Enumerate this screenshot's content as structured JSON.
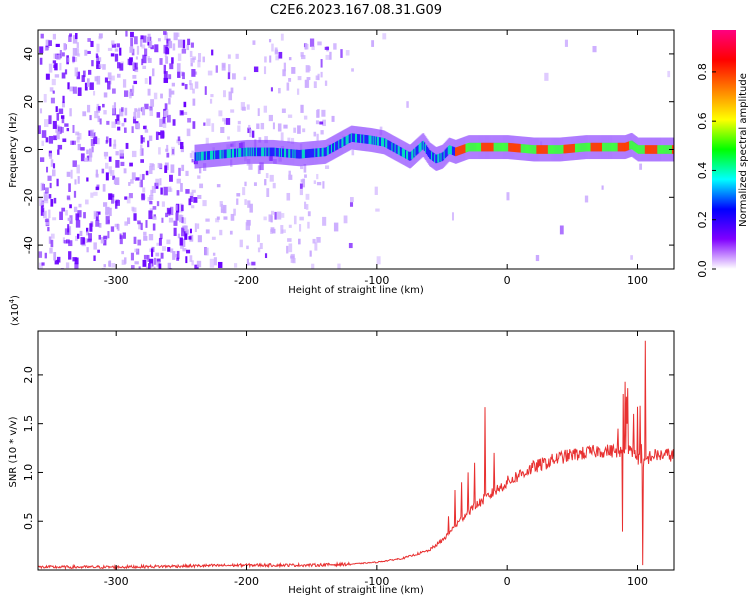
{
  "title": "C2E6.2023.167.08.31.G09",
  "chart_data": [
    {
      "type": "heatmap",
      "xlabel": "Height of straight line (km)",
      "ylabel": "Frequency (Hz)",
      "xlim": [
        -360,
        128
      ],
      "ylim": [
        -50,
        50
      ],
      "x_ticks": [
        -300,
        -200,
        -100,
        0,
        100
      ],
      "y_ticks": [
        -40,
        -20,
        0,
        20,
        40
      ],
      "colorbar": {
        "label": "Normalized spectral amplitude",
        "range": [
          0.0,
          0.97
        ],
        "ticks": [
          0.0,
          0.2,
          0.4,
          0.6,
          0.8
        ],
        "colormap": [
          "#ffffff",
          "#8000ff",
          "#0000ff",
          "#00ffff",
          "#00ff00",
          "#ffff00",
          "#ff8000",
          "#ff0000",
          "#ff0080"
        ]
      },
      "trace": {
        "x": [
          -240,
          -220,
          -200,
          -180,
          -160,
          -140,
          -120,
          -105,
          -95,
          -85,
          -75,
          -65,
          -60,
          -55,
          -50,
          -45,
          -40,
          -30,
          -20,
          -10,
          0,
          20,
          40,
          60,
          80,
          90,
          95,
          100,
          110,
          128
        ],
        "y": [
          -3,
          -2,
          -1,
          -1,
          -2,
          -1,
          5,
          4,
          3,
          0,
          -3,
          2,
          -2,
          -4,
          -3,
          0,
          -1,
          1,
          1,
          1,
          1,
          0,
          0,
          1,
          1,
          1,
          2,
          0,
          0,
          0
        ]
      }
    },
    {
      "type": "line",
      "xlabel": "Height of straight line (km)",
      "ylabel": "SNR (10 * v/v)",
      "multiplier": "(x10",
      "multiplier_exp": "4",
      "multiplier_close": ")",
      "xlim": [
        -360,
        128
      ],
      "ylim": [
        0,
        2.45
      ],
      "x_ticks": [
        -300,
        -200,
        -100,
        0,
        100
      ],
      "y_ticks": [
        0.5,
        1.0,
        1.5,
        2.0
      ],
      "color": "#e83030",
      "baseline": {
        "x": [
          -360,
          -300,
          -250,
          -200,
          -150,
          -120,
          -100,
          -80,
          -60,
          -50,
          -40,
          -30,
          -20,
          -10,
          0,
          10,
          20,
          30,
          40,
          50,
          60,
          70,
          80,
          90,
          95,
          100,
          105,
          110,
          120,
          128
        ],
        "y": [
          0.03,
          0.03,
          0.04,
          0.05,
          0.05,
          0.06,
          0.08,
          0.12,
          0.2,
          0.3,
          0.45,
          0.6,
          0.7,
          0.8,
          0.9,
          0.98,
          1.05,
          1.1,
          1.15,
          1.18,
          1.2,
          1.22,
          1.22,
          1.22,
          1.22,
          1.15,
          1.1,
          1.17,
          1.18,
          1.18
        ]
      },
      "spikes": {
        "x": [
          -45,
          -40,
          -35,
          -30,
          -25,
          -17,
          -10,
          85,
          92,
          97,
          100,
          102,
          104,
          106
        ],
        "y": [
          0.55,
          0.82,
          0.9,
          1.0,
          1.1,
          1.67,
          1.2,
          1.45,
          1.5,
          1.6,
          2.4,
          2.1,
          0.05,
          2.35
        ]
      }
    }
  ]
}
